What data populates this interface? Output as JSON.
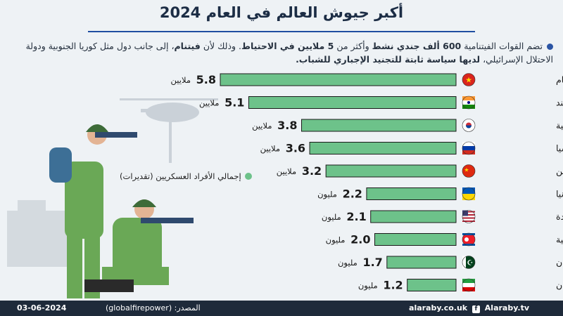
{
  "title": "أكبر جيوش العالم في العام 2024",
  "intro": {
    "part1": "تضم القوات الفيتنامية ",
    "bold1": "600 ألف جندي نشط",
    "part2": " وأكثر من ",
    "bold2": "5 ملايين في الاحتياط",
    "part3": ". وذلك لأن ",
    "bold3": "فيتنام",
    "part4": "، إلى جانب دول مثل كوريا الجنوبية ودولة الاحتلال الإسرائيلي، ",
    "bold4": "لديها سياسة ثابتة للتجنيد الإجباري للشباب."
  },
  "legend_label": "إجمالي الأفراد العسكريين (تقديرات)",
  "footer": {
    "date": "03-06-2024",
    "source": "المصدر: (globalfirepower)",
    "site": "alaraby.co.uk",
    "social": "Alaraby.tv"
  },
  "colors": {
    "bar": "#6dc28a",
    "bar_stroke": "#1a1a1a",
    "accent": "#1f4ea0",
    "footer": "#1e2a3a"
  },
  "chart_data": {
    "type": "bar",
    "orientation": "horizontal",
    "categories": [
      "فيتنام",
      "الهند",
      "كوريا الجنوبية",
      "روسيا",
      "الصين",
      "أوكرانيا",
      "الولايات المتحدة",
      "كوريا الشمالية",
      "باكستان",
      "إيران"
    ],
    "values": [
      5.8,
      5.1,
      3.8,
      3.6,
      3.2,
      2.2,
      2.1,
      2.0,
      1.7,
      1.2
    ],
    "value_units": [
      "ملايين",
      "ملايين",
      "ملايين",
      "ملايين",
      "ملايين",
      "مليون",
      "مليون",
      "مليون",
      "مليون",
      "مليون"
    ],
    "flags": [
      "vietnam",
      "india",
      "south-korea",
      "russia",
      "china",
      "ukraine",
      "usa",
      "north-korea",
      "pakistan",
      "iran"
    ],
    "xlim": [
      0,
      5.8
    ],
    "grid": false
  }
}
